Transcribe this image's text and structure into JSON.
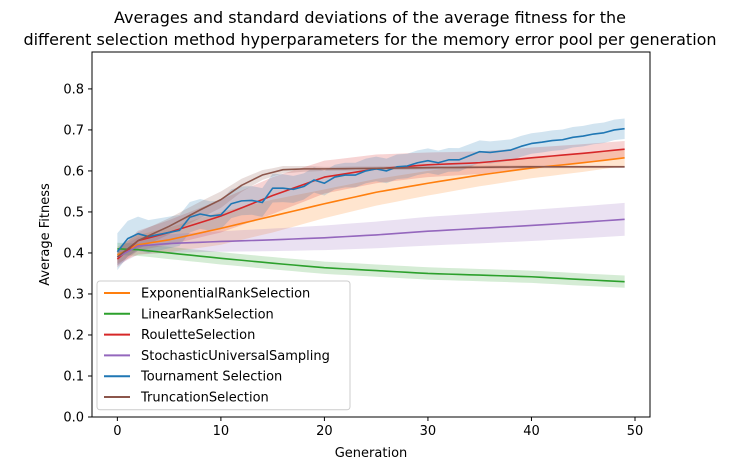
{
  "chart_data": {
    "type": "line",
    "title": "Averages and standard deviations of the average fitness for the different selection method hyperparameters for the memory error pool per generation",
    "title_lines": [
      "Averages and standard deviations of the average fitness for the",
      "different selection method hyperparameters for the memory error pool per generation"
    ],
    "xlabel": "Generation",
    "ylabel": "Average Fitness",
    "xlim": [
      -2.45,
      51.45
    ],
    "ylim": [
      0.0,
      0.89
    ],
    "xticks": [
      0,
      10,
      20,
      30,
      40,
      50
    ],
    "yticks": [
      0.0,
      0.1,
      0.2,
      0.3,
      0.4,
      0.5,
      0.6,
      0.7,
      0.8
    ],
    "ytick_labels": [
      "0.0",
      "0.1",
      "0.2",
      "0.3",
      "0.4",
      "0.5",
      "0.6",
      "0.7",
      "0.8"
    ],
    "grid": false,
    "legend_position": "lower-left",
    "shaded_band": "standard deviation",
    "series": [
      {
        "name": "ExponentialRankSelection",
        "color": "#ff7f0e",
        "x": [
          0,
          49
        ],
        "keypoints": [
          [
            0,
            0.395
          ],
          [
            2,
            0.42
          ],
          [
            5,
            0.432
          ],
          [
            10,
            0.46
          ],
          [
            15,
            0.49
          ],
          [
            20,
            0.52
          ],
          [
            25,
            0.548
          ],
          [
            30,
            0.57
          ],
          [
            35,
            0.59
          ],
          [
            40,
            0.607
          ],
          [
            45,
            0.62
          ],
          [
            49,
            0.632
          ]
        ],
        "std_keypoints": [
          [
            0,
            0.02
          ],
          [
            5,
            0.03
          ],
          [
            10,
            0.04
          ],
          [
            15,
            0.04
          ],
          [
            20,
            0.035
          ],
          [
            30,
            0.03
          ],
          [
            40,
            0.025
          ],
          [
            49,
            0.02
          ]
        ]
      },
      {
        "name": "LinearRankSelection",
        "color": "#2ca02c",
        "x": [
          0,
          49
        ],
        "keypoints": [
          [
            0,
            0.41
          ],
          [
            2,
            0.408
          ],
          [
            5,
            0.4
          ],
          [
            10,
            0.387
          ],
          [
            15,
            0.375
          ],
          [
            20,
            0.364
          ],
          [
            25,
            0.357
          ],
          [
            30,
            0.35
          ],
          [
            35,
            0.346
          ],
          [
            40,
            0.342
          ],
          [
            45,
            0.335
          ],
          [
            49,
            0.33
          ]
        ],
        "std_keypoints": [
          [
            0,
            0.015
          ],
          [
            10,
            0.015
          ],
          [
            20,
            0.015
          ],
          [
            30,
            0.015
          ],
          [
            40,
            0.015
          ],
          [
            49,
            0.015
          ]
        ]
      },
      {
        "name": "RouletteSelection",
        "color": "#d62728",
        "x": [
          0,
          49
        ],
        "keypoints": [
          [
            0,
            0.385
          ],
          [
            2,
            0.43
          ],
          [
            5,
            0.45
          ],
          [
            10,
            0.49
          ],
          [
            15,
            0.54
          ],
          [
            20,
            0.585
          ],
          [
            25,
            0.605
          ],
          [
            30,
            0.615
          ],
          [
            35,
            0.62
          ],
          [
            40,
            0.632
          ],
          [
            45,
            0.643
          ],
          [
            49,
            0.653
          ]
        ],
        "std_keypoints": [
          [
            0,
            0.02
          ],
          [
            5,
            0.03
          ],
          [
            10,
            0.04
          ],
          [
            15,
            0.045
          ],
          [
            20,
            0.04
          ],
          [
            30,
            0.03
          ],
          [
            40,
            0.025
          ],
          [
            49,
            0.02
          ]
        ]
      },
      {
        "name": "StochasticUniversalSampling",
        "color": "#9467bd",
        "x": [
          0,
          49
        ],
        "keypoints": [
          [
            0,
            0.39
          ],
          [
            2,
            0.417
          ],
          [
            5,
            0.423
          ],
          [
            10,
            0.428
          ],
          [
            15,
            0.432
          ],
          [
            20,
            0.437
          ],
          [
            25,
            0.444
          ],
          [
            30,
            0.453
          ],
          [
            35,
            0.46
          ],
          [
            40,
            0.467
          ],
          [
            45,
            0.475
          ],
          [
            49,
            0.482
          ]
        ],
        "std_keypoints": [
          [
            0,
            0.02
          ],
          [
            10,
            0.025
          ],
          [
            20,
            0.03
          ],
          [
            30,
            0.035
          ],
          [
            40,
            0.038
          ],
          [
            49,
            0.04
          ]
        ]
      },
      {
        "name": "Tournament Selection",
        "color": "#1f77b4",
        "x": [
          0,
          49
        ],
        "keypoints": [
          [
            0,
            0.403
          ],
          [
            1,
            0.435
          ],
          [
            2,
            0.447
          ],
          [
            3,
            0.44
          ],
          [
            4,
            0.445
          ],
          [
            5,
            0.45
          ],
          [
            6,
            0.455
          ],
          [
            7,
            0.487
          ],
          [
            8,
            0.495
          ],
          [
            9,
            0.49
          ],
          [
            10,
            0.493
          ],
          [
            11,
            0.52
          ],
          [
            12,
            0.527
          ],
          [
            13,
            0.528
          ],
          [
            14,
            0.523
          ],
          [
            15,
            0.558
          ],
          [
            16,
            0.558
          ],
          [
            17,
            0.555
          ],
          [
            18,
            0.562
          ],
          [
            19,
            0.578
          ],
          [
            20,
            0.57
          ],
          [
            21,
            0.585
          ],
          [
            22,
            0.59
          ],
          [
            23,
            0.59
          ],
          [
            24,
            0.6
          ],
          [
            25,
            0.605
          ],
          [
            26,
            0.6
          ],
          [
            27,
            0.61
          ],
          [
            28,
            0.612
          ],
          [
            29,
            0.62
          ],
          [
            30,
            0.625
          ],
          [
            31,
            0.62
          ],
          [
            32,
            0.627
          ],
          [
            33,
            0.627
          ],
          [
            34,
            0.637
          ],
          [
            35,
            0.647
          ],
          [
            36,
            0.645
          ],
          [
            37,
            0.648
          ],
          [
            38,
            0.651
          ],
          [
            39,
            0.66
          ],
          [
            40,
            0.667
          ],
          [
            41,
            0.67
          ],
          [
            42,
            0.674
          ],
          [
            43,
            0.676
          ],
          [
            44,
            0.682
          ],
          [
            45,
            0.685
          ],
          [
            46,
            0.69
          ],
          [
            47,
            0.693
          ],
          [
            48,
            0.7
          ],
          [
            49,
            0.703
          ]
        ],
        "std_keypoints": [
          [
            0,
            0.045
          ],
          [
            3,
            0.04
          ],
          [
            10,
            0.035
          ],
          [
            15,
            0.035
          ],
          [
            20,
            0.03
          ],
          [
            30,
            0.03
          ],
          [
            40,
            0.025
          ],
          [
            49,
            0.025
          ]
        ]
      },
      {
        "name": "TruncationSelection",
        "color": "#8c564b",
        "x": [
          0,
          49
        ],
        "keypoints": [
          [
            0,
            0.39
          ],
          [
            2,
            0.43
          ],
          [
            5,
            0.465
          ],
          [
            8,
            0.505
          ],
          [
            10,
            0.53
          ],
          [
            12,
            0.565
          ],
          [
            14,
            0.59
          ],
          [
            16,
            0.603
          ],
          [
            18,
            0.605
          ],
          [
            20,
            0.605
          ],
          [
            30,
            0.608
          ],
          [
            40,
            0.61
          ],
          [
            49,
            0.61
          ]
        ],
        "std_keypoints": [
          [
            0,
            0.02
          ],
          [
            5,
            0.02
          ],
          [
            10,
            0.02
          ],
          [
            15,
            0.01
          ],
          [
            20,
            0.005
          ],
          [
            49,
            0.003
          ]
        ]
      }
    ]
  }
}
